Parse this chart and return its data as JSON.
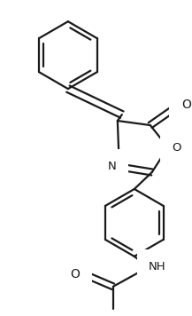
{
  "bg_color": "#ffffff",
  "line_color": "#1a1a1a",
  "line_width": 1.6,
  "figsize": [
    2.17,
    3.56
  ],
  "dpi": 100,
  "xlim": [
    0,
    217
  ],
  "ylim": [
    0,
    356
  ]
}
